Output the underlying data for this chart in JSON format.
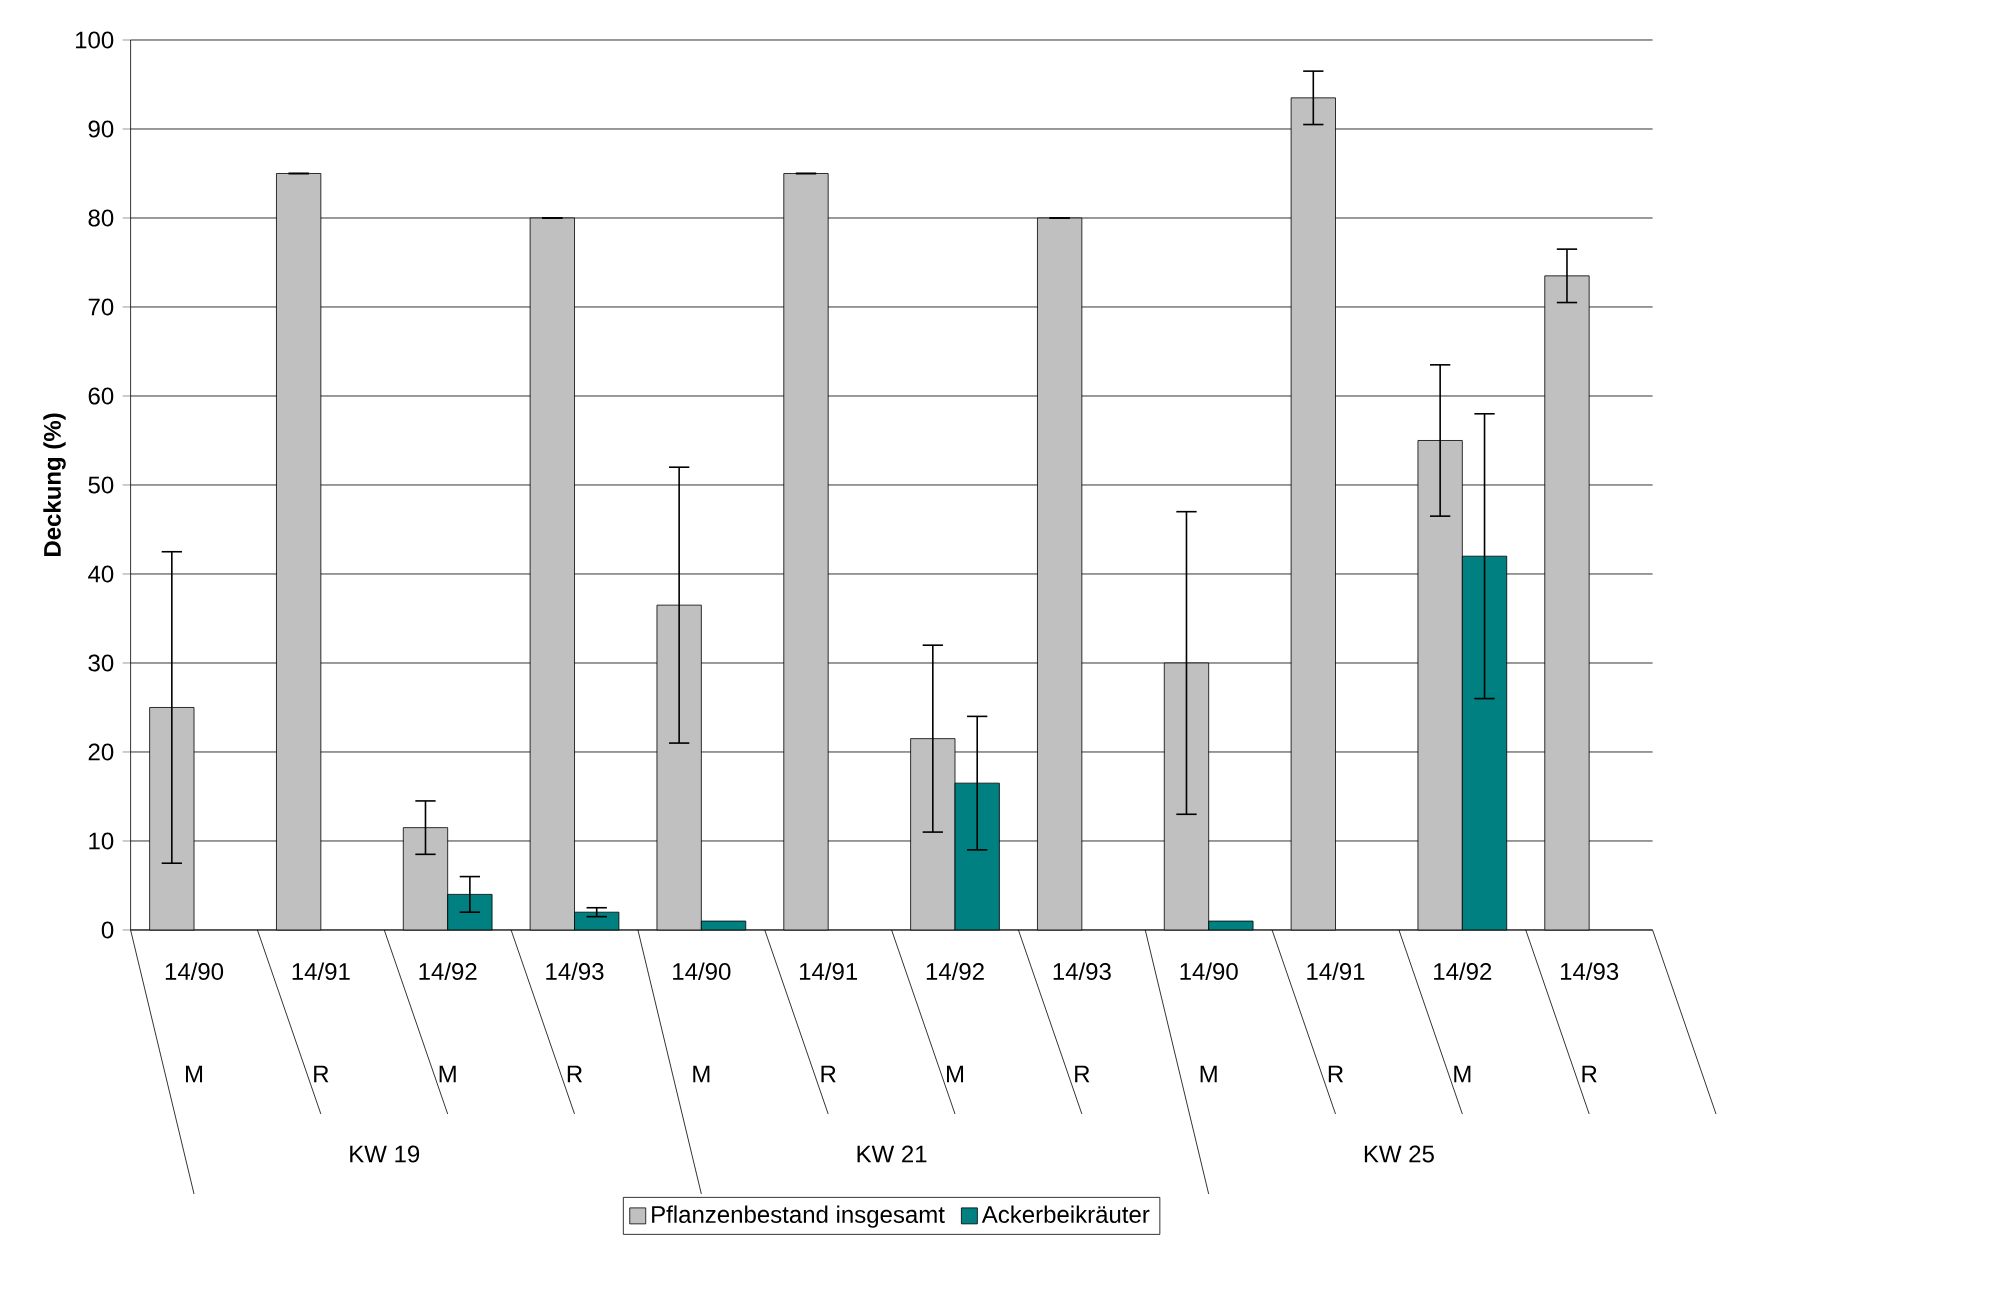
{
  "chart_data": {
    "type": "bar",
    "ylabel": "Deckung (%)",
    "categories": [
      "14/90",
      "14/91",
      "14/92",
      "14/93",
      "14/90",
      "14/91",
      "14/92",
      "14/93",
      "14/90",
      "14/91",
      "14/92",
      "14/93"
    ],
    "annotations": [
      "M",
      "R",
      "M",
      "R",
      "M",
      "R",
      "M",
      "R",
      "M",
      "R",
      "M",
      "R",
      "KW 19",
      "KW 21",
      "KW 25"
    ],
    "series": [
      {
        "name": "Pflanzenbestand insgesamt",
        "color": "#c0c0c0",
        "values": [
          25,
          85,
          11.5,
          80,
          36.5,
          85,
          21.5,
          80,
          30,
          93.5,
          55,
          73.5
        ],
        "errors": [
          17.5,
          0,
          3,
          0,
          15.5,
          0,
          10.5,
          0,
          17,
          3,
          8.5,
          3
        ]
      },
      {
        "name": "Ackerbeikräuter",
        "color": "#008080",
        "values": [
          null,
          null,
          4,
          2,
          1,
          null,
          16.5,
          null,
          1,
          null,
          42,
          null
        ],
        "errors": [
          null,
          null,
          2,
          0.5,
          null,
          null,
          7.5,
          null,
          null,
          null,
          16,
          null
        ]
      }
    ],
    "ylim": [
      0,
      100
    ],
    "yticks": [
      0,
      10,
      20,
      30,
      40,
      50,
      60,
      70,
      80,
      90,
      100
    ],
    "grid": "y",
    "legend": "bottom"
  }
}
